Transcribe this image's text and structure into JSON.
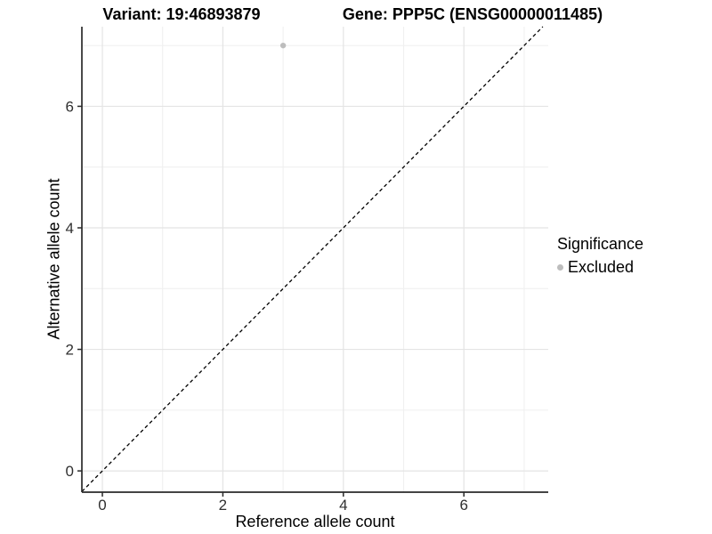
{
  "chart_data": {
    "type": "scatter",
    "title_left": "Variant: 19:46893879",
    "title_right": "Gene: PPP5C (ENSG00000011485)",
    "xlabel": "Reference allele count",
    "ylabel": "Alternative allele count",
    "xlim": [
      -0.34,
      7.4
    ],
    "ylim": [
      -0.35,
      7.31
    ],
    "x_ticks": [
      0,
      2,
      4,
      6
    ],
    "y_ticks": [
      0,
      2,
      4,
      6
    ],
    "x_minor_ticks": [
      1,
      3,
      5,
      7
    ],
    "y_minor_ticks": [
      1,
      3,
      5,
      7
    ],
    "grid": true,
    "points": [
      {
        "x": 3,
        "y": 7,
        "series": "Excluded"
      }
    ],
    "reference_line": {
      "kind": "abline",
      "slope": 1,
      "intercept": 0,
      "style": "dashed",
      "color": "#000000"
    },
    "legend": {
      "title": "Significance",
      "position": "right",
      "entries": [
        {
          "label": "Excluded",
          "color": "#bdbdbd"
        }
      ]
    },
    "colors": {
      "point": "#bdbdbd",
      "grid_major": "#e4e4e4",
      "grid_minor": "#f0f0f0",
      "axis_line": "#2a2a2a",
      "tick_label": "#303030"
    }
  }
}
